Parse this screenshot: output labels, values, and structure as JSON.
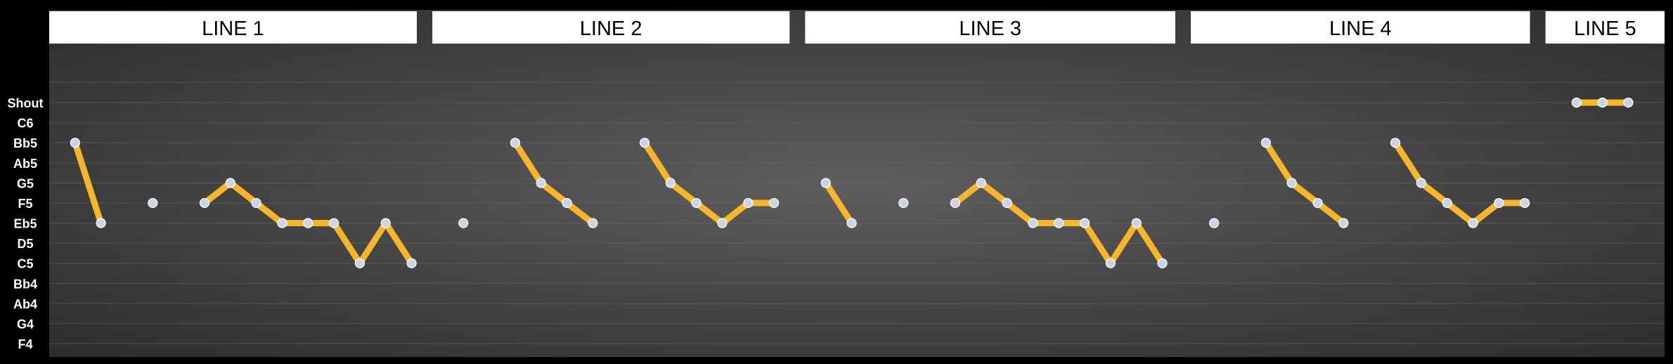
{
  "chart_data": {
    "type": "line",
    "title": "",
    "xlabel": "",
    "ylabel": "",
    "y_levels": [
      "F4",
      "G4",
      "Ab4",
      "Bb4",
      "C5",
      "D5",
      "Eb5",
      "F5",
      "G5",
      "Ab5",
      "Bb5",
      "C6",
      "Shout"
    ],
    "grid": true,
    "colors": {
      "background_center": "#5e5e5e",
      "background_edge": "#2a2a2a",
      "gridline": "#6a6a6a",
      "line": "#f7b52c",
      "point": "#c9d4e6",
      "header_bg": "#ffffff",
      "label": "#ffffff"
    },
    "sections": [
      {
        "label": "LINE 1",
        "x_range": [
          0,
          14.2
        ]
      },
      {
        "label": "LINE 2",
        "x_range": [
          14.8,
          28.6
        ]
      },
      {
        "label": "LINE 3",
        "x_range": [
          29.2,
          43.5
        ]
      },
      {
        "label": "LINE 4",
        "x_range": [
          44.1,
          57.2
        ]
      },
      {
        "label": "LINE 5",
        "x_range": [
          57.8,
          62.4
        ]
      }
    ],
    "series": [
      {
        "points": [
          [
            1,
            "Bb5"
          ],
          [
            2,
            "Eb5"
          ]
        ]
      },
      {
        "points": [
          [
            4,
            "F5"
          ]
        ]
      },
      {
        "points": [
          [
            6,
            "F5"
          ],
          [
            7,
            "G5"
          ],
          [
            8,
            "F5"
          ],
          [
            9,
            "Eb5"
          ],
          [
            10,
            "Eb5"
          ],
          [
            11,
            "Eb5"
          ],
          [
            12,
            "C5"
          ],
          [
            13,
            "Eb5"
          ],
          [
            14,
            "C5"
          ]
        ]
      },
      {
        "points": [
          [
            16,
            "Eb5"
          ]
        ]
      },
      {
        "points": [
          [
            18,
            "Bb5"
          ],
          [
            19,
            "G5"
          ],
          [
            20,
            "F5"
          ],
          [
            21,
            "Eb5"
          ]
        ]
      },
      {
        "points": [
          [
            23,
            "Bb5"
          ],
          [
            24,
            "G5"
          ],
          [
            25,
            "F5"
          ],
          [
            26,
            "Eb5"
          ],
          [
            27,
            "F5"
          ],
          [
            28,
            "F5"
          ]
        ]
      },
      {
        "points": [
          [
            30,
            "G5"
          ],
          [
            31,
            "Eb5"
          ]
        ]
      },
      {
        "points": [
          [
            33,
            "F5"
          ]
        ]
      },
      {
        "points": [
          [
            35,
            "F5"
          ],
          [
            36,
            "G5"
          ],
          [
            37,
            "F5"
          ],
          [
            38,
            "Eb5"
          ],
          [
            39,
            "Eb5"
          ],
          [
            40,
            "Eb5"
          ],
          [
            41,
            "C5"
          ],
          [
            42,
            "Eb5"
          ],
          [
            43,
            "C5"
          ]
        ]
      },
      {
        "points": [
          [
            45,
            "Eb5"
          ]
        ]
      },
      {
        "points": [
          [
            47,
            "Bb5"
          ],
          [
            48,
            "G5"
          ],
          [
            49,
            "F5"
          ],
          [
            50,
            "Eb5"
          ]
        ]
      },
      {
        "points": [
          [
            52,
            "Bb5"
          ],
          [
            53,
            "G5"
          ],
          [
            54,
            "F5"
          ],
          [
            55,
            "Eb5"
          ],
          [
            56,
            "F5"
          ],
          [
            57,
            "F5"
          ]
        ]
      },
      {
        "points": [
          [
            59,
            "Shout"
          ],
          [
            60,
            "Shout"
          ],
          [
            61,
            "Shout"
          ]
        ]
      }
    ]
  }
}
